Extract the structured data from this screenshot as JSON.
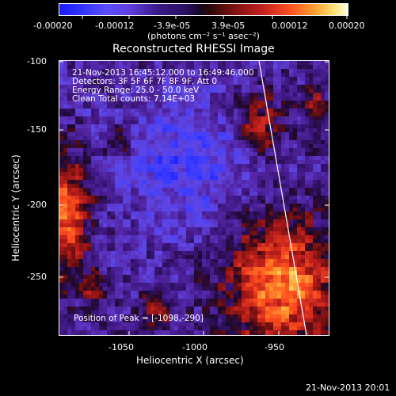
{
  "colorbar": {
    "ticks": [
      "-0.00020",
      "-0.00012",
      "-3.9e-05",
      "3.9e-05",
      "0.00012",
      "0.00020"
    ],
    "units_label": "(photons cm⁻² s⁻¹ asec⁻²)"
  },
  "plot": {
    "title": "Reconstructed RHESSI Image",
    "xlabel": "Heliocentric X (arcsec)",
    "ylabel": "Heliocentric Y (arcsec)",
    "xticks": [
      "-1050",
      "-1000",
      "-950"
    ],
    "yticks": [
      "-100",
      "-150",
      "-200",
      "-250"
    ],
    "info": [
      "21-Nov-2013 16:45:12.000 to 16:49:46.000",
      "Detectors: 3F 5F 6F 7F 8F 9F, Att 0",
      "Energy Range: 25.0 - 50.0 keV",
      "Clean    Total counts: 7.14E+03"
    ],
    "peak_label": "Position of Peak = [-1098,-290]"
  },
  "footer": {
    "timestamp": "21-Nov-2013 20:01"
  },
  "colors": {
    "background": "#000000",
    "foreground": "#ffffff"
  },
  "chart_data": {
    "type": "heatmap",
    "title": "Reconstructed RHESSI Image",
    "xlabel": "Heliocentric X (arcsec)",
    "ylabel": "Heliocentric Y (arcsec)",
    "xlim": [
      -1100,
      -910
    ],
    "ylim": [
      -290,
      -100
    ],
    "zlim": [
      -0.0002,
      0.0002
    ],
    "peak": [
      -1098,
      -290
    ]
  }
}
